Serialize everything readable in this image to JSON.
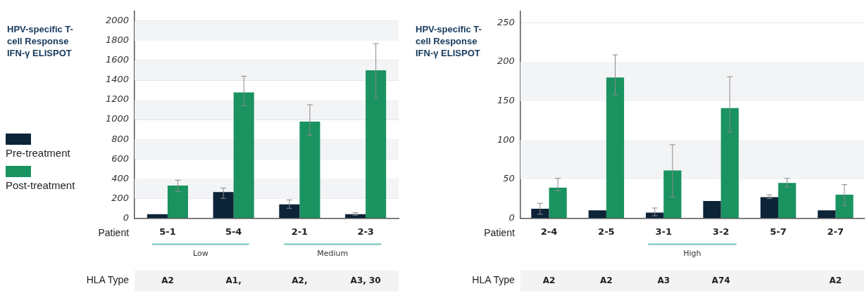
{
  "chart_data": [
    {
      "type": "bar",
      "title": "HPV-specific T-cell Response IFN-γ ELISPOT",
      "xlabel": "Patient",
      "categories": [
        "5-1",
        "5-4",
        "2-1",
        "2-3"
      ],
      "series": [
        {
          "name": "Pre-treatment",
          "color": "#0d2338",
          "values": [
            40,
            265,
            140,
            40
          ],
          "errors": [
            null,
            [
              200,
              305
            ],
            [
              100,
              185
            ],
            [
              30,
              55
            ]
          ]
        },
        {
          "name": "Post-treatment",
          "color": "#1a9360",
          "values": [
            330,
            1275,
            980,
            1500
          ],
          "errors": [
            [
              270,
              385
            ],
            [
              1140,
              1440
            ],
            [
              840,
              1150
            ],
            [
              1220,
              1770
            ]
          ]
        }
      ],
      "ylim": [
        0,
        2100
      ],
      "yticks": [
        0,
        200,
        400,
        600,
        800,
        1000,
        1200,
        1400,
        1600,
        1800,
        2000
      ],
      "grid": "y",
      "legend": "left",
      "annotations": [
        "Low",
        "Medium",
        "HLA Type",
        "A2",
        "A1,",
        "A2,",
        "A3, 30"
      ]
    },
    {
      "type": "bar",
      "title": "HPV-specific T-cell Response IFN-γ ELISPOT",
      "xlabel": "Patient",
      "categories": [
        "2-4",
        "2-5",
        "3-1",
        "3-2",
        "5-7",
        "2-7"
      ],
      "series": [
        {
          "color": "#0d2338",
          "values": [
            12,
            10,
            7,
            22,
            27,
            10
          ],
          "errors": [
            [
              5,
              19
            ],
            null,
            [
              3,
              13
            ],
            null,
            [
              25,
              30
            ],
            null
          ]
        },
        {
          "color": "#1a9360",
          "values": [
            39,
            180,
            61,
            141,
            45,
            30
          ],
          "errors": [
            [
              35,
              51
            ],
            [
              158,
              209
            ],
            [
              27,
              94
            ],
            [
              110,
              181
            ],
            [
              40,
              51
            ],
            [
              16,
              43
            ]
          ]
        }
      ],
      "ylim": [
        0,
        265
      ],
      "yticks": [
        0,
        50,
        100,
        150,
        200,
        250
      ],
      "grid": "y",
      "annotations": [
        "High",
        "HLA Type",
        "A2",
        "A2",
        "A3",
        "A74",
        "A2"
      ]
    }
  ]
}
